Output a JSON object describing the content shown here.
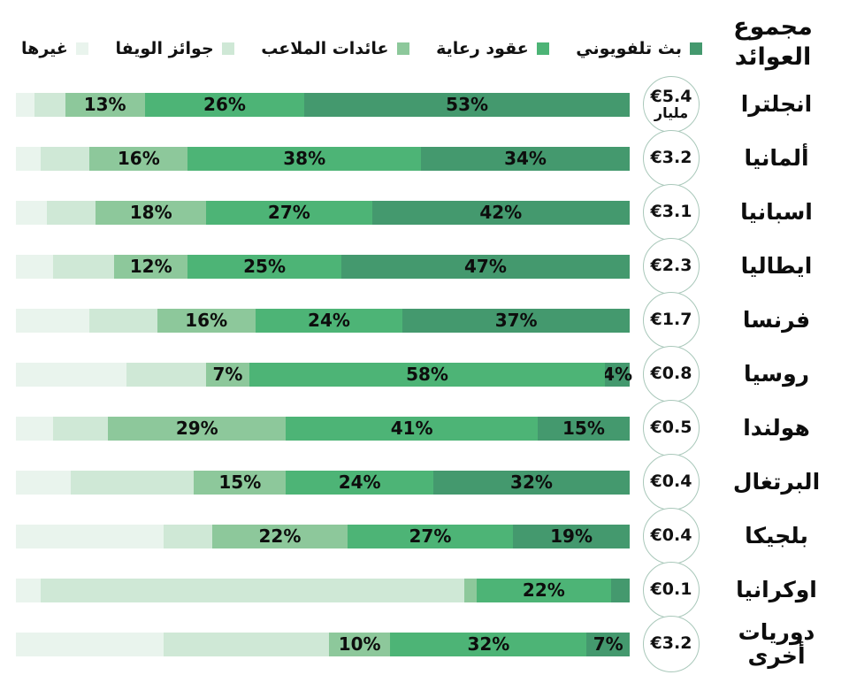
{
  "header": {
    "title": "مجموع العوائد"
  },
  "chart_data": {
    "type": "bar",
    "subtype": "horizontal-stacked",
    "direction": "rtl",
    "title": "مجموع العوائد",
    "value_format": "percent",
    "legend_position": "top",
    "series": [
      {
        "key": "tv",
        "label": "بث تلفويوني",
        "color": "#44996e"
      },
      {
        "key": "sponsorship",
        "label": "عقود رعاية",
        "color": "#4db476"
      },
      {
        "key": "stadium",
        "label": "عائدات الملاعب",
        "color": "#8dc89b"
      },
      {
        "key": "uefa",
        "label": "جوائز الويفا",
        "color": "#cfe8d6"
      },
      {
        "key": "other",
        "label": "غيرها",
        "color": "#e9f4ed"
      }
    ],
    "rows": [
      {
        "country": "انجلترا",
        "total": "€5.4",
        "unit": "مليار",
        "segments": [
          {
            "name": "tv",
            "value": 53,
            "label": "53%"
          },
          {
            "name": "sponsorship",
            "value": 26,
            "label": "26%"
          },
          {
            "name": "stadium",
            "value": 13,
            "label": "13%"
          },
          {
            "name": "uefa",
            "value": 5,
            "label": ""
          },
          {
            "name": "other",
            "value": 3,
            "label": ""
          }
        ]
      },
      {
        "country": "ألمانيا",
        "total": "€3.2",
        "unit": "",
        "segments": [
          {
            "name": "tv",
            "value": 34,
            "label": "34%"
          },
          {
            "name": "sponsorship",
            "value": 38,
            "label": "38%"
          },
          {
            "name": "stadium",
            "value": 16,
            "label": "16%"
          },
          {
            "name": "uefa",
            "value": 8,
            "label": ""
          },
          {
            "name": "other",
            "value": 4,
            "label": ""
          }
        ]
      },
      {
        "country": "اسبانيا",
        "total": "€3.1",
        "unit": "",
        "segments": [
          {
            "name": "tv",
            "value": 42,
            "label": "42%"
          },
          {
            "name": "sponsorship",
            "value": 27,
            "label": "27%"
          },
          {
            "name": "stadium",
            "value": 18,
            "label": "18%"
          },
          {
            "name": "uefa",
            "value": 8,
            "label": ""
          },
          {
            "name": "other",
            "value": 5,
            "label": ""
          }
        ]
      },
      {
        "country": "ايطاليا",
        "total": "€2.3",
        "unit": "",
        "segments": [
          {
            "name": "tv",
            "value": 47,
            "label": "47%"
          },
          {
            "name": "sponsorship",
            "value": 25,
            "label": "25%"
          },
          {
            "name": "stadium",
            "value": 12,
            "label": "12%"
          },
          {
            "name": "uefa",
            "value": 10,
            "label": ""
          },
          {
            "name": "other",
            "value": 6,
            "label": ""
          }
        ]
      },
      {
        "country": "فرنسا",
        "total": "€1.7",
        "unit": "",
        "segments": [
          {
            "name": "tv",
            "value": 37,
            "label": "37%"
          },
          {
            "name": "sponsorship",
            "value": 24,
            "label": "24%"
          },
          {
            "name": "stadium",
            "value": 16,
            "label": "16%"
          },
          {
            "name": "uefa",
            "value": 11,
            "label": ""
          },
          {
            "name": "other",
            "value": 12,
            "label": ""
          }
        ]
      },
      {
        "country": "روسيا",
        "total": "€0.8",
        "unit": "",
        "segments": [
          {
            "name": "tv",
            "value": 4,
            "label": "4%"
          },
          {
            "name": "sponsorship",
            "value": 58,
            "label": "58%"
          },
          {
            "name": "stadium",
            "value": 7,
            "label": "7%"
          },
          {
            "name": "uefa",
            "value": 13,
            "label": ""
          },
          {
            "name": "other",
            "value": 18,
            "label": ""
          }
        ]
      },
      {
        "country": "هولندا",
        "total": "€0.5",
        "unit": "",
        "segments": [
          {
            "name": "tv",
            "value": 15,
            "label": "15%"
          },
          {
            "name": "sponsorship",
            "value": 41,
            "label": "41%"
          },
          {
            "name": "stadium",
            "value": 29,
            "label": "29%"
          },
          {
            "name": "uefa",
            "value": 9,
            "label": ""
          },
          {
            "name": "other",
            "value": 6,
            "label": ""
          }
        ]
      },
      {
        "country": "البرتغال",
        "total": "€0.4",
        "unit": "",
        "segments": [
          {
            "name": "tv",
            "value": 32,
            "label": "32%"
          },
          {
            "name": "sponsorship",
            "value": 24,
            "label": "24%"
          },
          {
            "name": "stadium",
            "value": 15,
            "label": "15%"
          },
          {
            "name": "uefa",
            "value": 20,
            "label": ""
          },
          {
            "name": "other",
            "value": 9,
            "label": ""
          }
        ]
      },
      {
        "country": "بلجيكا",
        "total": "€0.4",
        "unit": "",
        "segments": [
          {
            "name": "tv",
            "value": 19,
            "label": "19%"
          },
          {
            "name": "sponsorship",
            "value": 27,
            "label": "27%"
          },
          {
            "name": "stadium",
            "value": 22,
            "label": "22%"
          },
          {
            "name": "uefa",
            "value": 8,
            "label": ""
          },
          {
            "name": "other",
            "value": 24,
            "label": ""
          }
        ]
      },
      {
        "country": "اوكرانيا",
        "total": "€0.1",
        "unit": "",
        "segments": [
          {
            "name": "tv",
            "value": 3,
            "label": ""
          },
          {
            "name": "sponsorship",
            "value": 22,
            "label": "22%"
          },
          {
            "name": "stadium",
            "value": 2,
            "label": ""
          },
          {
            "name": "uefa",
            "value": 69,
            "label": ""
          },
          {
            "name": "other",
            "value": 4,
            "label": ""
          }
        ]
      },
      {
        "country": "دوريات أخرى",
        "total": "€3.2",
        "unit": "",
        "segments": [
          {
            "name": "tv",
            "value": 7,
            "label": "7%"
          },
          {
            "name": "sponsorship",
            "value": 32,
            "label": "32%"
          },
          {
            "name": "stadium",
            "value": 10,
            "label": "10%"
          },
          {
            "name": "uefa",
            "value": 27,
            "label": ""
          },
          {
            "name": "other",
            "value": 24,
            "label": ""
          }
        ]
      }
    ]
  }
}
